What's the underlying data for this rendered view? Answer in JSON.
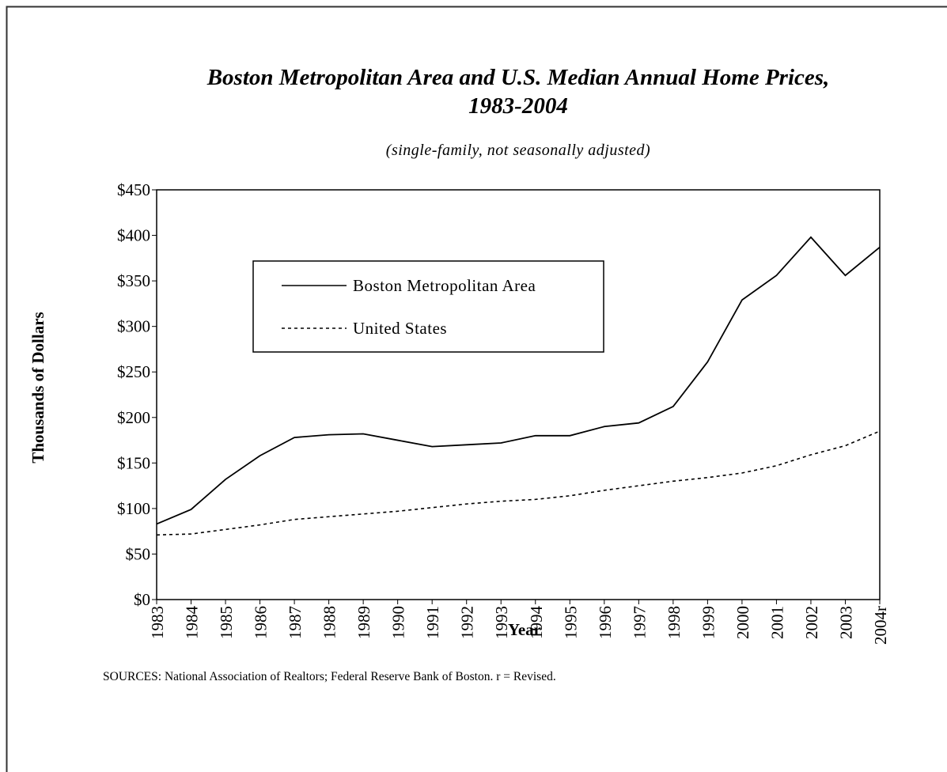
{
  "chart_data": {
    "type": "line",
    "title": "Boston Metropolitan Area and U.S. Median Annual Home Prices, 1983-2004",
    "subtitle": "(single-family, not seasonally adjusted)",
    "y_label": "Thousands of Dollars",
    "x_label": "Year",
    "note": "SOURCES:  National Association of Realtors; Federal Reserve Bank of Boston. r = Revised.",
    "categories": [
      "1983",
      "1984",
      "1985",
      "1986",
      "1987",
      "1988",
      "1989",
      "1990",
      "1991",
      "1992",
      "1993",
      "1994",
      "1995",
      "1996",
      "1997",
      "1998",
      "1999",
      "2000",
      "2001",
      "2002",
      "2003",
      "2004r"
    ],
    "series": [
      {
        "name": "Boston Metropolitan Area",
        "color": "#000000",
        "dash": "solid",
        "values": [
          83,
          99,
          132,
          158,
          178,
          181,
          182,
          175,
          168,
          170,
          172,
          180,
          180,
          190,
          194,
          212,
          261,
          329,
          356,
          398,
          356,
          387
        ]
      },
      {
        "name": "United States",
        "color": "#000000",
        "dash": "dotted",
        "values": [
          71,
          72,
          77,
          82,
          88,
          91,
          94,
          97,
          101,
          105,
          108,
          110,
          114,
          120,
          125,
          130,
          134,
          139,
          147,
          159,
          169,
          185
        ]
      }
    ],
    "ylim": [
      0,
      450
    ],
    "yticks": [
      {
        "value": 0,
        "label": "$0"
      },
      {
        "value": 50,
        "label": "$50"
      },
      {
        "value": 100,
        "label": "$100"
      },
      {
        "value": 150,
        "label": "$150"
      },
      {
        "value": 200,
        "label": "$200"
      },
      {
        "value": 250,
        "label": "$250"
      },
      {
        "value": 300,
        "label": "$300"
      },
      {
        "value": 350,
        "label": "$350"
      },
      {
        "value": 400,
        "label": "$400"
      },
      {
        "value": 450,
        "label": "$450"
      }
    ],
    "grid": false
  }
}
